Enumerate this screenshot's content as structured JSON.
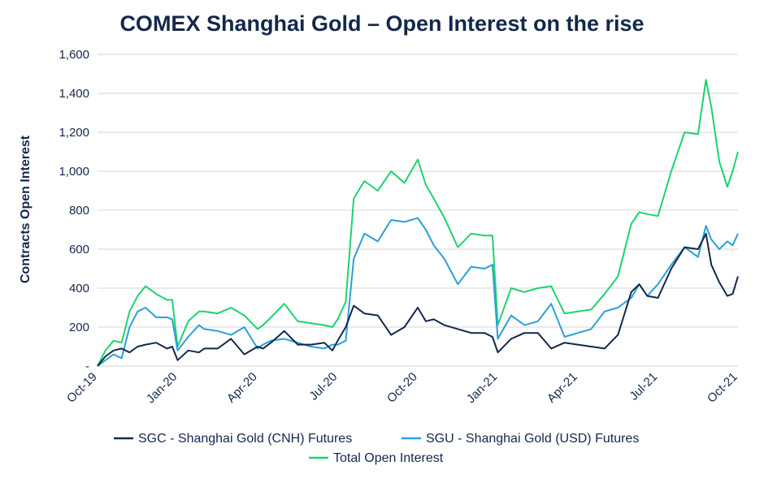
{
  "chart_data": {
    "type": "line",
    "title": "COMEX Shanghai Gold – Open Interest on the rise",
    "xlabel": "",
    "ylabel": "Contracts Open Interest",
    "ylim": [
      0,
      1600
    ],
    "yticks": [
      0,
      200,
      400,
      600,
      800,
      1000,
      1200,
      1400,
      1600
    ],
    "ytick_labels": [
      "-",
      "200",
      "400",
      "600",
      "800",
      "1,000",
      "1,200",
      "1,400",
      "1,600"
    ],
    "xlim": [
      0,
      24
    ],
    "xticks": [
      0,
      3,
      6,
      9,
      12,
      15,
      18,
      21,
      24
    ],
    "xtick_labels": [
      "Oct-19",
      "Jan-20",
      "Apr-20",
      "Jul-20",
      "Oct-20",
      "Jan-21",
      "Apr-21",
      "Jul-21",
      "Oct-21"
    ],
    "grid": true,
    "legend_position": "bottom",
    "series": [
      {
        "name": "SGC - Shanghai Gold (CNH) Futures",
        "color": "#14284b",
        "x": [
          0,
          0.3,
          0.6,
          0.9,
          1.2,
          1.5,
          1.8,
          2.2,
          2.6,
          2.8,
          3.0,
          3.4,
          3.8,
          4.0,
          4.5,
          5.0,
          5.5,
          6.0,
          6.2,
          6.5,
          7.0,
          7.5,
          8.0,
          8.5,
          8.8,
          9.0,
          9.3,
          9.6,
          10.0,
          10.5,
          11.0,
          11.5,
          12.0,
          12.3,
          12.6,
          13.0,
          13.5,
          14.0,
          14.5,
          14.8,
          15.0,
          15.5,
          16.0,
          16.5,
          17.0,
          17.5,
          18.0,
          18.5,
          19.0,
          19.5,
          20.0,
          20.3,
          20.6,
          21.0,
          21.5,
          22.0,
          22.5,
          22.8,
          23.0,
          23.3,
          23.6,
          23.8,
          24.0
        ],
        "values": [
          0,
          50,
          80,
          90,
          70,
          100,
          110,
          120,
          90,
          100,
          30,
          80,
          70,
          90,
          90,
          140,
          60,
          100,
          90,
          120,
          180,
          110,
          110,
          120,
          80,
          130,
          200,
          310,
          270,
          260,
          160,
          200,
          300,
          230,
          240,
          210,
          190,
          170,
          170,
          150,
          70,
          140,
          170,
          170,
          90,
          120,
          110,
          100,
          90,
          160,
          380,
          420,
          360,
          350,
          500,
          610,
          600,
          680,
          520,
          430,
          360,
          370,
          460
        ]
      },
      {
        "name": "SGU - Shanghai Gold (USD) Futures",
        "color": "#2b9fd9",
        "x": [
          0,
          0.3,
          0.6,
          0.9,
          1.2,
          1.5,
          1.8,
          2.2,
          2.6,
          2.8,
          3.0,
          3.4,
          3.8,
          4.0,
          4.5,
          5.0,
          5.5,
          6.0,
          6.2,
          6.5,
          7.0,
          7.5,
          8.0,
          8.5,
          8.8,
          9.0,
          9.3,
          9.6,
          10.0,
          10.5,
          11.0,
          11.5,
          12.0,
          12.3,
          12.6,
          13.0,
          13.5,
          14.0,
          14.5,
          14.8,
          15.0,
          15.5,
          16.0,
          16.5,
          17.0,
          17.5,
          18.0,
          18.5,
          19.0,
          19.5,
          20.0,
          20.3,
          20.6,
          21.0,
          21.5,
          22.0,
          22.5,
          22.8,
          23.0,
          23.3,
          23.6,
          23.8,
          24.0
        ],
        "values": [
          0,
          30,
          60,
          40,
          200,
          280,
          300,
          250,
          250,
          240,
          80,
          150,
          210,
          190,
          180,
          160,
          200,
          90,
          110,
          130,
          140,
          120,
          100,
          90,
          110,
          110,
          130,
          550,
          680,
          640,
          750,
          740,
          760,
          700,
          620,
          550,
          420,
          510,
          500,
          520,
          140,
          260,
          210,
          230,
          320,
          150,
          170,
          190,
          280,
          300,
          350,
          420,
          360,
          420,
          520,
          610,
          560,
          720,
          650,
          600,
          640,
          620,
          680
        ]
      },
      {
        "name": "Total Open Interest",
        "color": "#1dd36f",
        "x": [
          0,
          0.3,
          0.6,
          0.9,
          1.2,
          1.5,
          1.8,
          2.2,
          2.6,
          2.8,
          3.0,
          3.4,
          3.8,
          4.0,
          4.5,
          5.0,
          5.5,
          6.0,
          6.2,
          6.5,
          7.0,
          7.5,
          8.0,
          8.5,
          8.8,
          9.0,
          9.3,
          9.6,
          10.0,
          10.5,
          11.0,
          11.5,
          12.0,
          12.3,
          12.6,
          13.0,
          13.5,
          14.0,
          14.5,
          14.8,
          15.0,
          15.5,
          16.0,
          16.5,
          17.0,
          17.5,
          18.0,
          18.5,
          19.0,
          19.5,
          20.0,
          20.3,
          20.6,
          21.0,
          21.5,
          22.0,
          22.5,
          22.8,
          23.0,
          23.3,
          23.6,
          23.8,
          24.0
        ],
        "values": [
          0,
          80,
          130,
          120,
          280,
          360,
          410,
          370,
          340,
          340,
          100,
          230,
          280,
          280,
          270,
          300,
          260,
          190,
          210,
          250,
          320,
          230,
          220,
          210,
          200,
          240,
          330,
          860,
          950,
          900,
          1000,
          940,
          1060,
          930,
          860,
          760,
          610,
          680,
          670,
          670,
          210,
          400,
          380,
          400,
          410,
          270,
          280,
          290,
          370,
          460,
          730,
          790,
          780,
          770,
          1000,
          1200,
          1190,
          1470,
          1330,
          1050,
          920,
          1000,
          1100
        ]
      }
    ]
  }
}
